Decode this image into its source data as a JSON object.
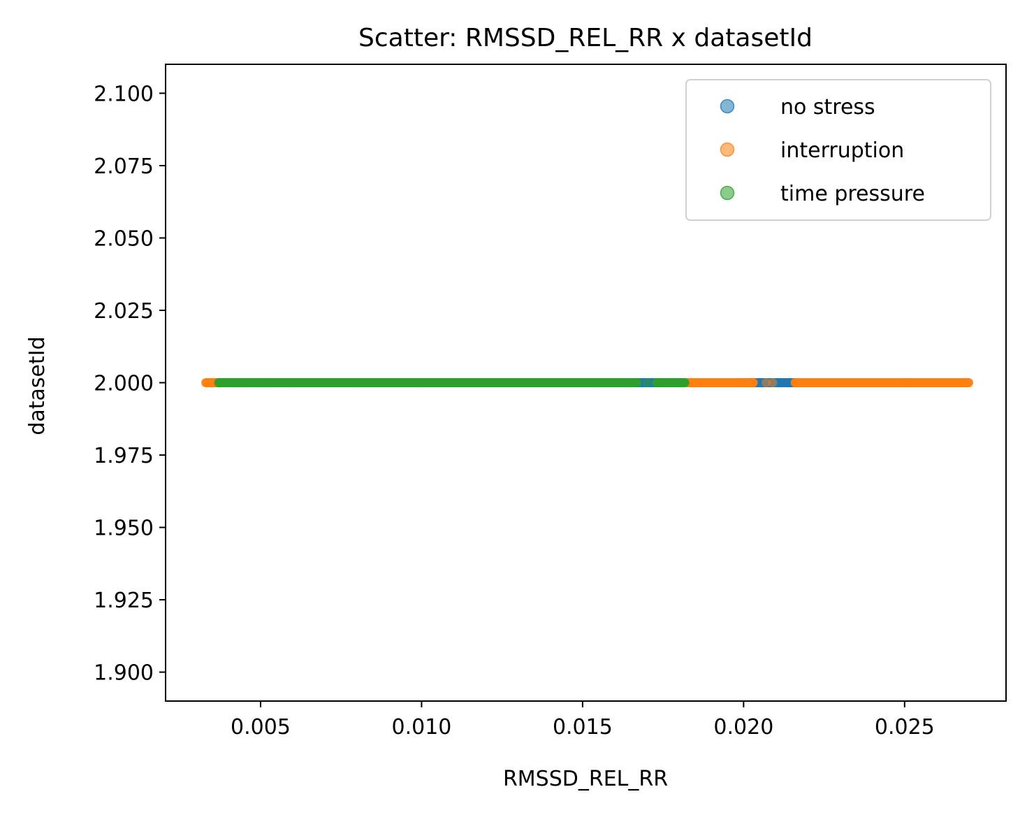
{
  "chart_data": {
    "type": "scatter",
    "title": "Scatter: RMSSD_REL_RR x datasetId",
    "xlabel": "RMSSD_REL_RR",
    "ylabel": "datasetId",
    "xlim": [
      0.00205,
      0.02815
    ],
    "ylim": [
      1.89,
      2.11
    ],
    "xticks": [
      0.005,
      0.01,
      0.015,
      0.02,
      0.025
    ],
    "xtick_labels": [
      "0.005",
      "0.010",
      "0.015",
      "0.020",
      "0.025"
    ],
    "yticks": [
      1.9,
      1.925,
      1.95,
      1.975,
      2.0,
      2.025,
      2.05,
      2.075,
      2.1
    ],
    "ytick_labels": [
      "1.900",
      "1.925",
      "1.950",
      "1.975",
      "2.000",
      "2.025",
      "2.050",
      "2.075",
      "2.100"
    ],
    "grid": false,
    "legend_position": "top-right",
    "series": [
      {
        "name": "no stress",
        "color": "#1f77b4",
        "y": 2.0,
        "x_ranges": [
          [
            0.0036,
            0.0182
          ],
          [
            0.0199,
            0.0216
          ],
          [
            0.025,
            0.0251
          ]
        ]
      },
      {
        "name": "interruption",
        "color": "#ff7f0e",
        "y": 2.0,
        "x_ranges": [
          [
            0.0033,
            0.005
          ],
          [
            0.0182,
            0.0203
          ],
          [
            0.0216,
            0.027
          ]
        ],
        "x_points": [
          0.0207,
          0.0209
        ]
      },
      {
        "name": "time pressure",
        "color": "#2ca02c",
        "y": 2.0,
        "x_ranges": [
          [
            0.0037,
            0.0167
          ],
          [
            0.0173,
            0.0182
          ]
        ],
        "x_points": [
          0.017
        ]
      }
    ]
  }
}
